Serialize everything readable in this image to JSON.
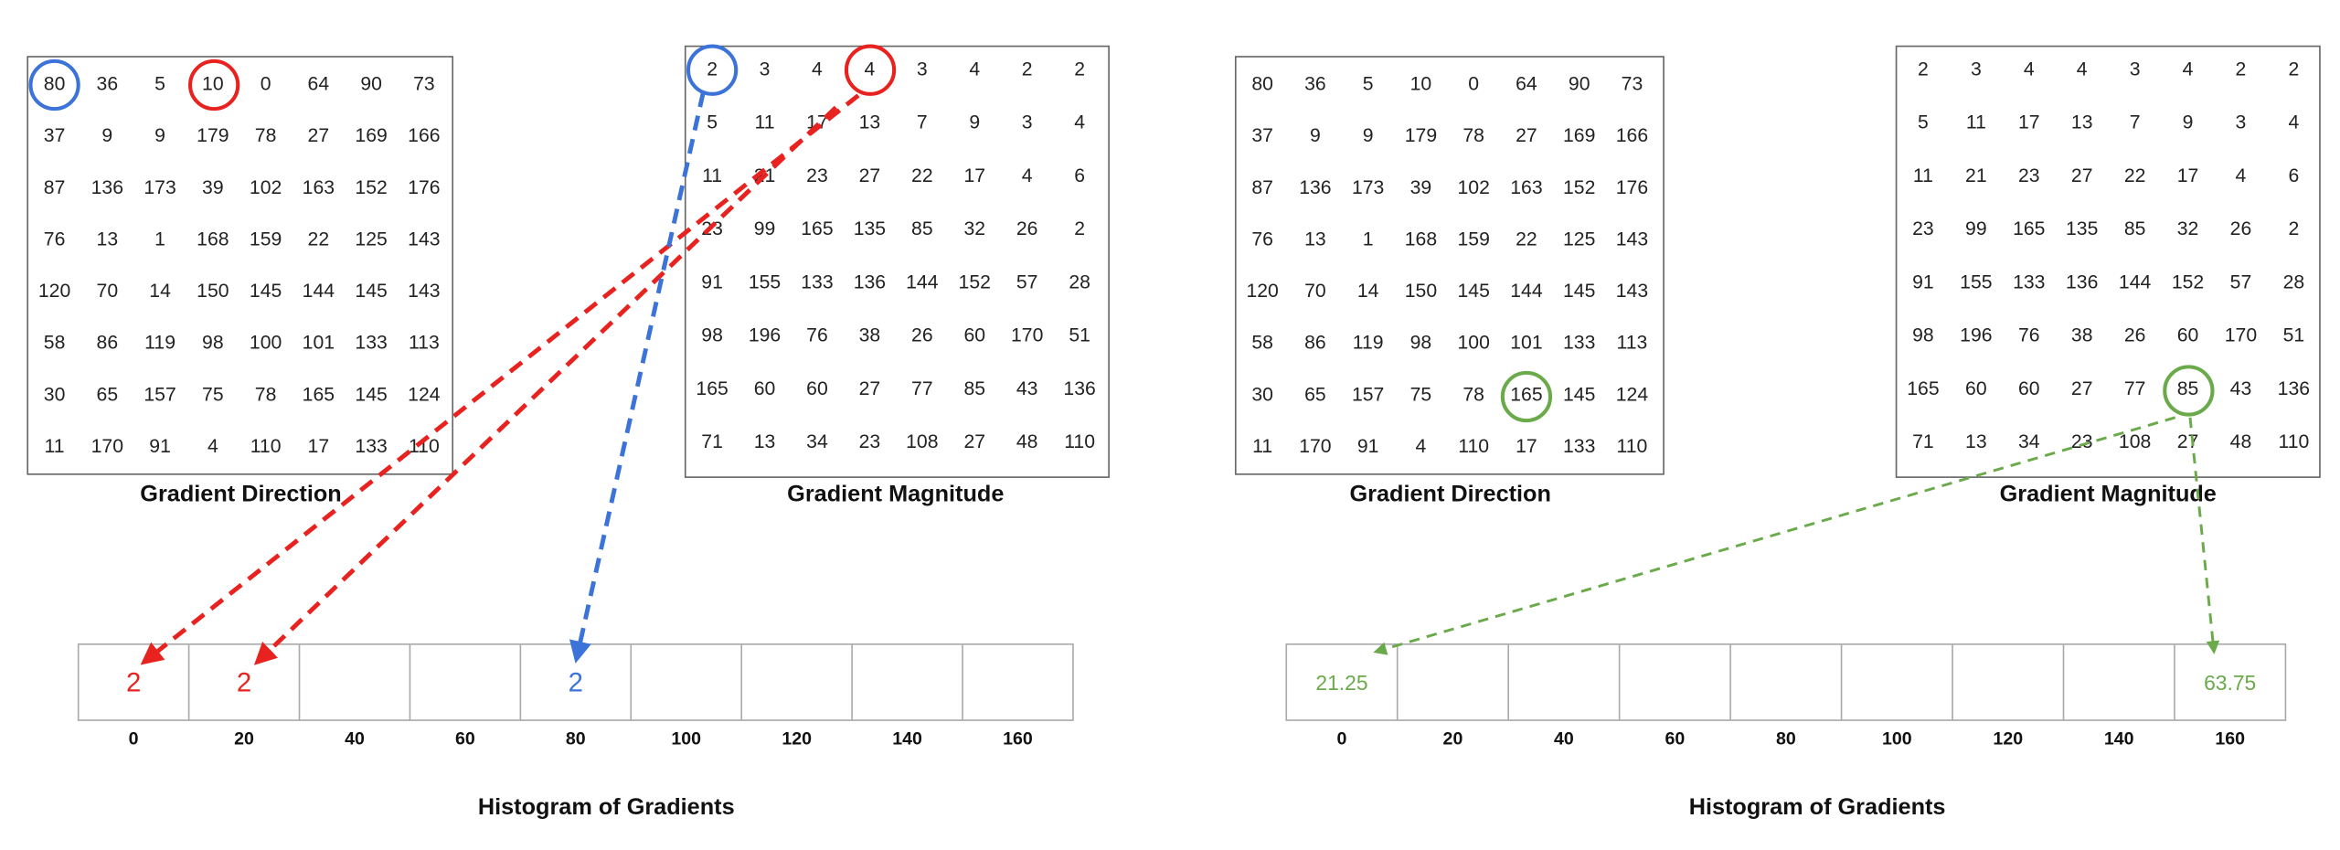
{
  "panels": [
    {
      "direction": {
        "title": "Gradient Direction",
        "rows": [
          [
            80,
            36,
            5,
            10,
            0,
            64,
            90,
            73
          ],
          [
            37,
            9,
            9,
            179,
            78,
            27,
            169,
            166
          ],
          [
            87,
            136,
            173,
            39,
            102,
            163,
            152,
            176
          ],
          [
            76,
            13,
            1,
            168,
            159,
            22,
            125,
            143
          ],
          [
            120,
            70,
            14,
            150,
            145,
            144,
            145,
            143
          ],
          [
            58,
            86,
            119,
            98,
            100,
            101,
            133,
            113
          ],
          [
            30,
            65,
            157,
            75,
            78,
            165,
            145,
            124
          ],
          [
            11,
            170,
            91,
            4,
            110,
            17,
            133,
            110
          ]
        ]
      },
      "magnitude": {
        "title": "Gradient Magnitude",
        "rows": [
          [
            2,
            3,
            4,
            4,
            3,
            4,
            2,
            2
          ],
          [
            5,
            11,
            17,
            13,
            7,
            9,
            3,
            4
          ],
          [
            11,
            21,
            23,
            27,
            22,
            17,
            4,
            6
          ],
          [
            23,
            99,
            165,
            135,
            85,
            32,
            26,
            2
          ],
          [
            91,
            155,
            133,
            136,
            144,
            152,
            57,
            28
          ],
          [
            98,
            196,
            76,
            38,
            26,
            60,
            170,
            51
          ],
          [
            165,
            60,
            60,
            27,
            77,
            85,
            43,
            136
          ],
          [
            71,
            13,
            34,
            23,
            108,
            27,
            48,
            110
          ]
        ]
      },
      "histogram": {
        "title": "Histogram of Gradients",
        "bins": [
          0,
          20,
          40,
          60,
          80,
          100,
          120,
          140,
          160
        ],
        "values": [
          2,
          2,
          null,
          null,
          2,
          null,
          null,
          null,
          null
        ]
      }
    },
    {
      "direction": {
        "title": "Gradient Direction",
        "rows": [
          [
            80,
            36,
            5,
            10,
            0,
            64,
            90,
            73
          ],
          [
            37,
            9,
            9,
            179,
            78,
            27,
            169,
            166
          ],
          [
            87,
            136,
            173,
            39,
            102,
            163,
            152,
            176
          ],
          [
            76,
            13,
            1,
            168,
            159,
            22,
            125,
            143
          ],
          [
            120,
            70,
            14,
            150,
            145,
            144,
            145,
            143
          ],
          [
            58,
            86,
            119,
            98,
            100,
            101,
            133,
            113
          ],
          [
            30,
            65,
            157,
            75,
            78,
            165,
            145,
            124
          ],
          [
            11,
            170,
            91,
            4,
            110,
            17,
            133,
            110
          ]
        ]
      },
      "magnitude": {
        "title": "Gradient Magnitude",
        "rows": [
          [
            2,
            3,
            4,
            4,
            3,
            4,
            2,
            2
          ],
          [
            5,
            11,
            17,
            13,
            7,
            9,
            3,
            4
          ],
          [
            11,
            21,
            23,
            27,
            22,
            17,
            4,
            6
          ],
          [
            23,
            99,
            165,
            135,
            85,
            32,
            26,
            2
          ],
          [
            91,
            155,
            133,
            136,
            144,
            152,
            57,
            28
          ],
          [
            98,
            196,
            76,
            38,
            26,
            60,
            170,
            51
          ],
          [
            165,
            60,
            60,
            27,
            77,
            85,
            43,
            136
          ],
          [
            71,
            13,
            34,
            23,
            108,
            27,
            48,
            110
          ]
        ]
      },
      "histogram": {
        "title": "Histogram of Gradients",
        "bins": [
          0,
          20,
          40,
          60,
          80,
          100,
          120,
          140,
          160
        ],
        "values": [
          21.25,
          null,
          null,
          null,
          null,
          null,
          null,
          null,
          63.75
        ]
      }
    }
  ]
}
